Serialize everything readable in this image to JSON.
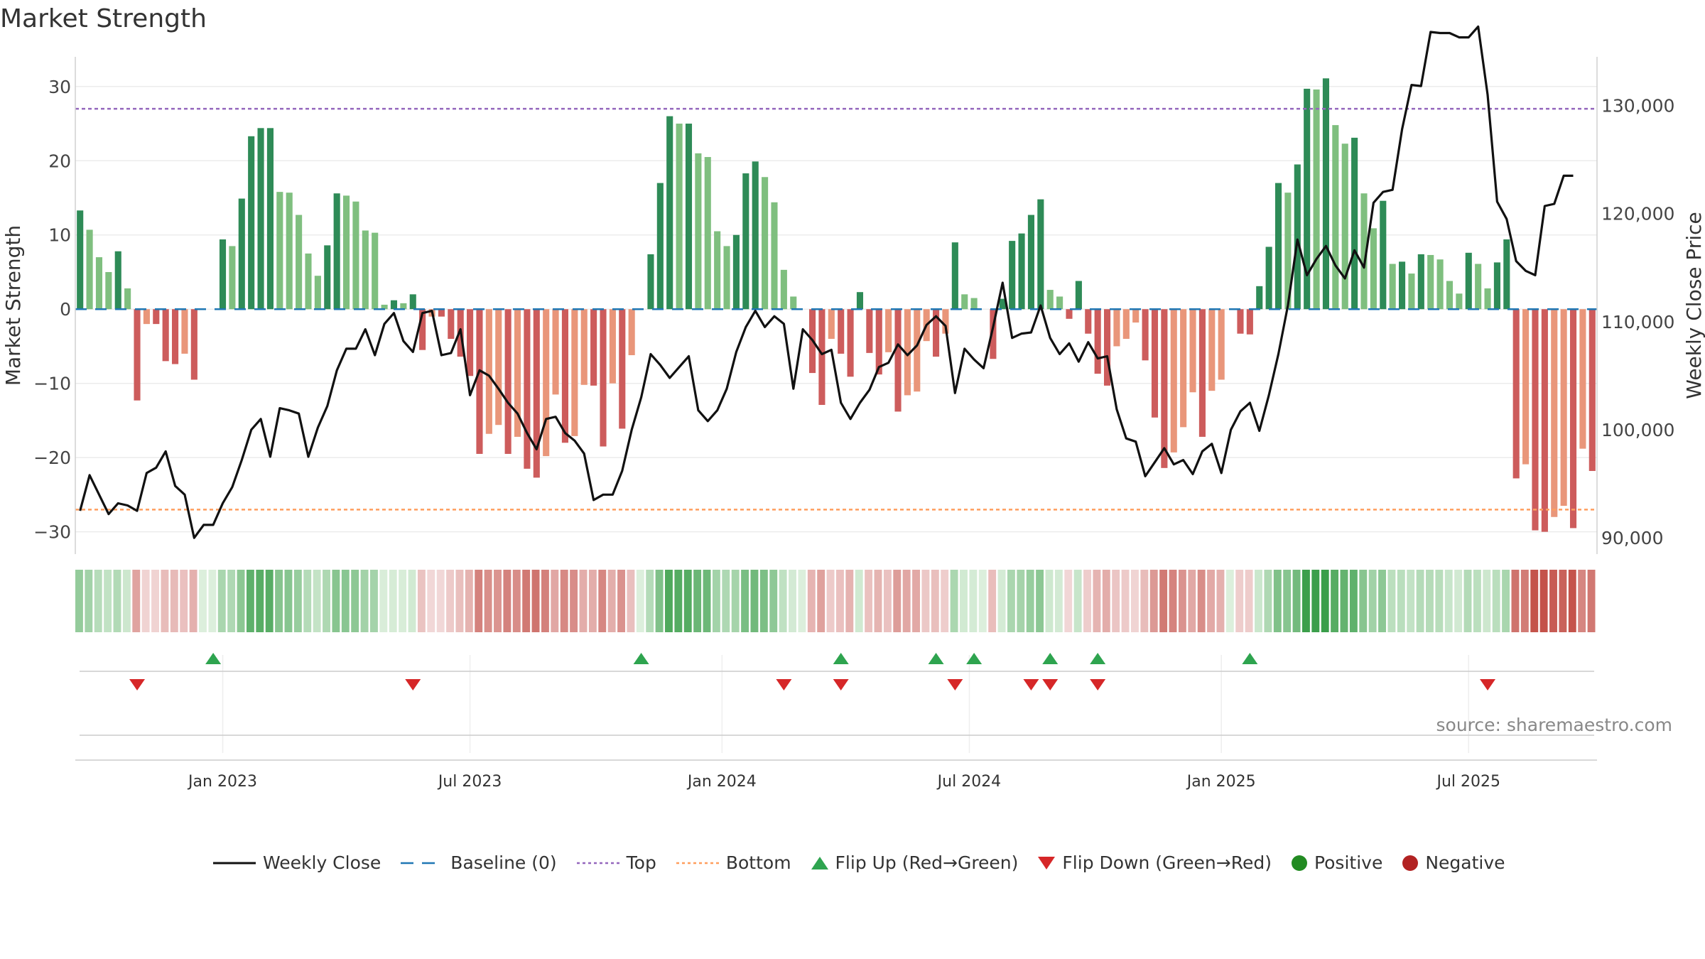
{
  "title": "Market Strength",
  "source": "source: sharemaestro.com",
  "colors": {
    "close_line": "#111111",
    "baseline": "#1f77b4",
    "top": "#9467bd",
    "bottom": "#ff9e5e",
    "bar_pos_strong": "#2e8b57",
    "bar_pos_weak": "#7fbf7f",
    "bar_neg_strong": "#cd5c5c",
    "bar_neg_weak": "#e9967a",
    "flip_up": "#2ea44f",
    "flip_down": "#d62728",
    "positive": "#228b22",
    "negative": "#b22222"
  },
  "chart_data": {
    "type": "bar",
    "title": "Market Strength",
    "ylabel_left": "Market Strength",
    "ylabel_right": "Weekly Close Price",
    "left_ylim": [
      -33,
      34
    ],
    "right_ylim": [
      88500,
      134500
    ],
    "left_ticks": [
      30,
      20,
      10,
      0,
      -10,
      -20,
      -30
    ],
    "left_tick_labels": [
      "30",
      "20",
      "10",
      "0",
      "−10",
      "−20",
      "−30"
    ],
    "right_ticks": [
      130000,
      120000,
      110000,
      100000,
      90000
    ],
    "right_tick_labels": [
      "130,000",
      "120,000",
      "110,000",
      "100,000",
      "90,000"
    ],
    "x_ticks": [
      "Jan 2023",
      "Jul 2023",
      "Jan 2024",
      "Jul 2024",
      "Jan 2025",
      "Jul 2025"
    ],
    "x_tick_index": [
      15,
      41,
      67.5,
      93.5,
      120,
      146
    ],
    "top_level": 27,
    "bottom_level": -27,
    "baseline_level": 0,
    "strength": [
      13.3,
      10.7,
      7,
      5,
      7.8,
      2.8,
      -12.3,
      -2,
      -2,
      -7,
      -7.4,
      -6,
      -9.5,
      0,
      0,
      9.4,
      8.5,
      14.9,
      23.3,
      24.4,
      24.4,
      15.8,
      15.7,
      12.7,
      7.5,
      4.5,
      8.6,
      15.6,
      15.3,
      14.5,
      10.6,
      10.3,
      0.6,
      1.2,
      0.8,
      2,
      -5.5,
      -1,
      -1,
      -4,
      -6.4,
      -9,
      -19.5,
      -16.8,
      -15.6,
      -19.5,
      -17.2,
      -21.5,
      -22.7,
      -19.8,
      -11.5,
      -18,
      -17.1,
      -10.2,
      -10.3,
      -18.5,
      -10,
      -16.1,
      -6.2,
      0,
      7.4,
      17,
      26,
      25,
      25,
      21,
      20.5,
      10.5,
      8.5,
      10,
      18.3,
      19.9,
      17.8,
      14.4,
      5.3,
      1.7,
      0,
      -8.6,
      -12.9,
      -4,
      -6,
      -9.1,
      2.3,
      -5.9,
      -8.8,
      -5.8,
      -13.8,
      -11.6,
      -11.1,
      -4.3,
      -6.4,
      -3.3,
      9,
      2,
      1.5,
      0,
      -6.7,
      1.4,
      9.2,
      10.2,
      12.7,
      14.8,
      2.6,
      1.7,
      -1.3,
      3.8,
      -3.3,
      -8.7,
      -10.3,
      -5,
      -4,
      -1.8,
      -6.9,
      -14.6,
      -21.4,
      -19.3,
      -15.9,
      -11.2,
      -17.2,
      -11,
      -9.5,
      0,
      -3.3,
      -3.4,
      3.1,
      8.4,
      17,
      15.7,
      19.5,
      29.7,
      29.6,
      31.1,
      24.8,
      22.3,
      23.1,
      15.6,
      10.9,
      14.6,
      6.1,
      6.4,
      4.8,
      7.4,
      7.3,
      6.7,
      3.8,
      2.1,
      7.6,
      6.1,
      2.8,
      6.3,
      9.4,
      -22.8,
      -20.9,
      -29.8,
      -30,
      -28,
      -26.5,
      -29.5,
      -18.8,
      -21.8
    ],
    "weekly_close": [
      92500,
      95800,
      94000,
      92200,
      93200,
      93000,
      92500,
      96000,
      96500,
      98000,
      94800,
      94000,
      90000,
      91200,
      91200,
      93200,
      94700,
      97200,
      100000,
      101000,
      97500,
      102000,
      101800,
      101500,
      97500,
      100200,
      102200,
      105500,
      107500,
      107500,
      109300,
      106900,
      109800,
      110800,
      108200,
      107200,
      110800,
      111000,
      106900,
      107100,
      109300,
      103200,
      105500,
      105000,
      103800,
      102500,
      101500,
      99700,
      98200,
      101000,
      101200,
      99700,
      99000,
      97800,
      93500,
      94000,
      94000,
      96200,
      100000,
      103000,
      107000,
      106000,
      104800,
      105800,
      106800,
      101800,
      100800,
      101800,
      103800,
      107200,
      109500,
      111000,
      109500,
      110500,
      109800,
      103800,
      109300,
      108300,
      107000,
      107400,
      102500,
      101000,
      102500,
      103700,
      105800,
      106200,
      107900,
      106900,
      107800,
      109700,
      110500,
      109600,
      103400,
      107500,
      106500,
      105700,
      109500,
      113600,
      108500,
      108900,
      109000,
      111500,
      108500,
      107000,
      108000,
      106300,
      108100,
      106600,
      106800,
      101900,
      99200,
      98900,
      95700,
      97000,
      98300,
      96800,
      97200,
      95900,
      98000,
      98700,
      96000,
      100000,
      101700,
      102500,
      99900,
      103200,
      107000,
      111500,
      117600,
      114300,
      115800,
      117000,
      115200,
      114000,
      116600,
      115000,
      121000,
      122000,
      122200,
      127800,
      131900,
      131800,
      136800,
      136700,
      136700,
      136300,
      136300,
      137300,
      131000,
      121100,
      119500,
      115600,
      114700,
      114300,
      120700,
      120900,
      123500,
      123500
    ],
    "flip_up_index": [
      14,
      59,
      80,
      90,
      94,
      102,
      107,
      123
    ],
    "flip_down_index": [
      6,
      35,
      74,
      80,
      92,
      100,
      102,
      107,
      148
    ],
    "legend": [
      "Weekly Close",
      "Baseline (0)",
      "Top",
      "Bottom",
      "Flip Up (Red→Green)",
      "Flip Down (Green→Red)",
      "Positive",
      "Negative"
    ]
  }
}
